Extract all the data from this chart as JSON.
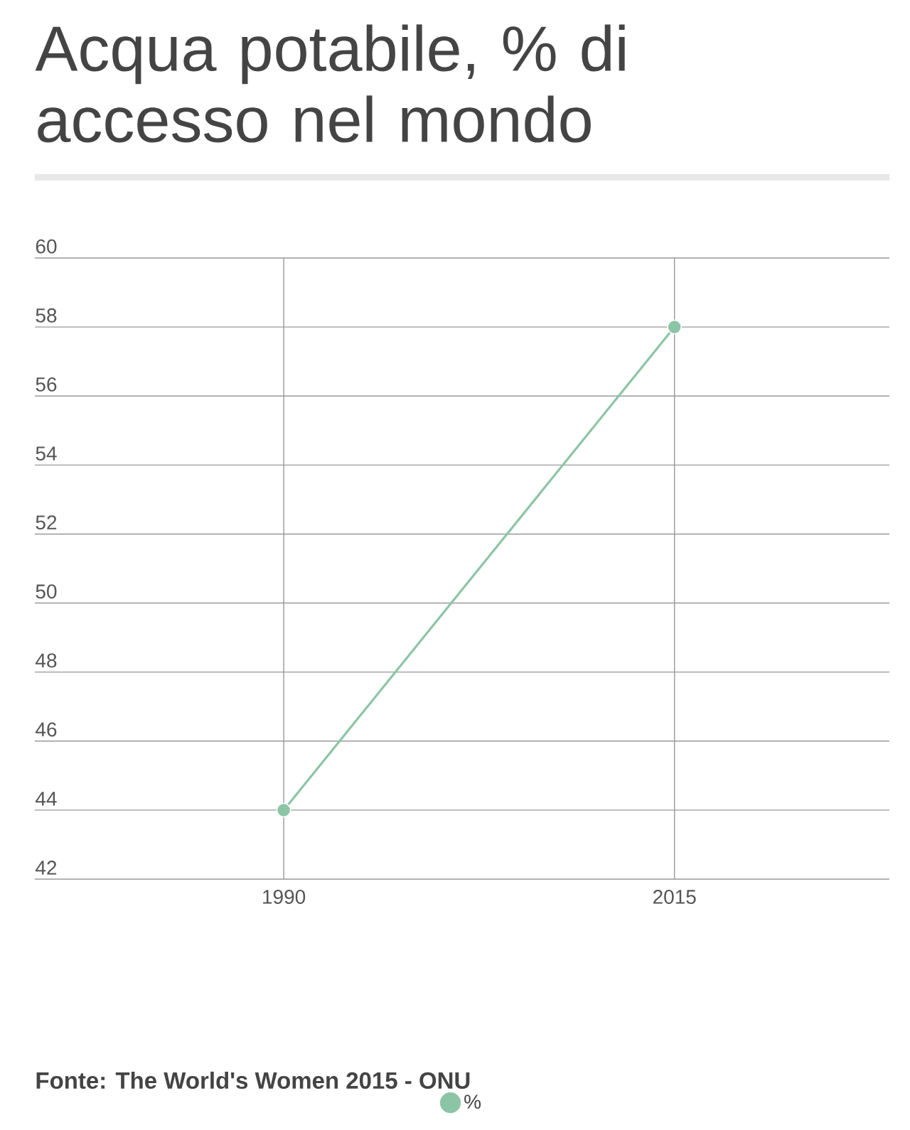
{
  "chart_data": {
    "type": "line",
    "title": "Acqua potabile, % di accesso nel mondo",
    "categories": [
      "1990",
      "2015"
    ],
    "series": [
      {
        "name": "%",
        "color": "#8cc5a6",
        "values": [
          44,
          58
        ]
      }
    ],
    "ylim": [
      42,
      60
    ],
    "yticks": [
      42,
      44,
      46,
      48,
      50,
      52,
      54,
      56,
      58,
      60
    ],
    "grid": true,
    "legend": "bottom",
    "marker": "circle",
    "line_style": "solid",
    "annotations": [
      "Fonte: The World's Women 2015 - ONU"
    ]
  }
}
